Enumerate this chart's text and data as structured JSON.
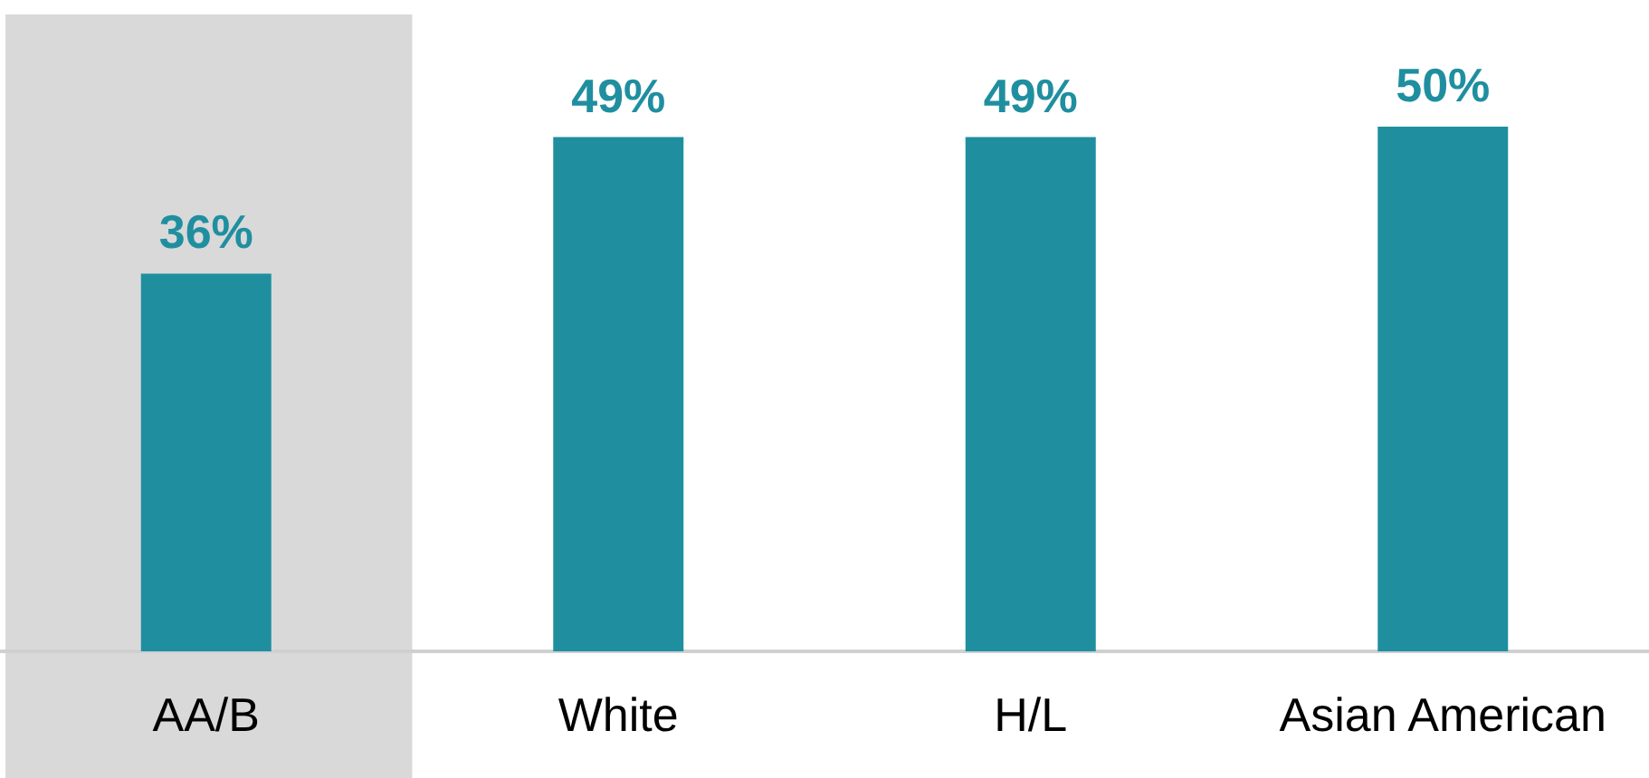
{
  "chart_data": {
    "type": "bar",
    "categories": [
      "AA/B",
      "White",
      "H/L",
      "Asian American"
    ],
    "values": [
      36,
      49,
      49,
      50
    ],
    "value_labels": [
      "36%",
      "49%",
      "49%",
      "50%"
    ],
    "color": "#1f8fa0",
    "bands": [
      {
        "axis": "x",
        "from": "AA/B",
        "to": "AA/B",
        "color": "#d9d9d9"
      }
    ],
    "grid": false
  }
}
